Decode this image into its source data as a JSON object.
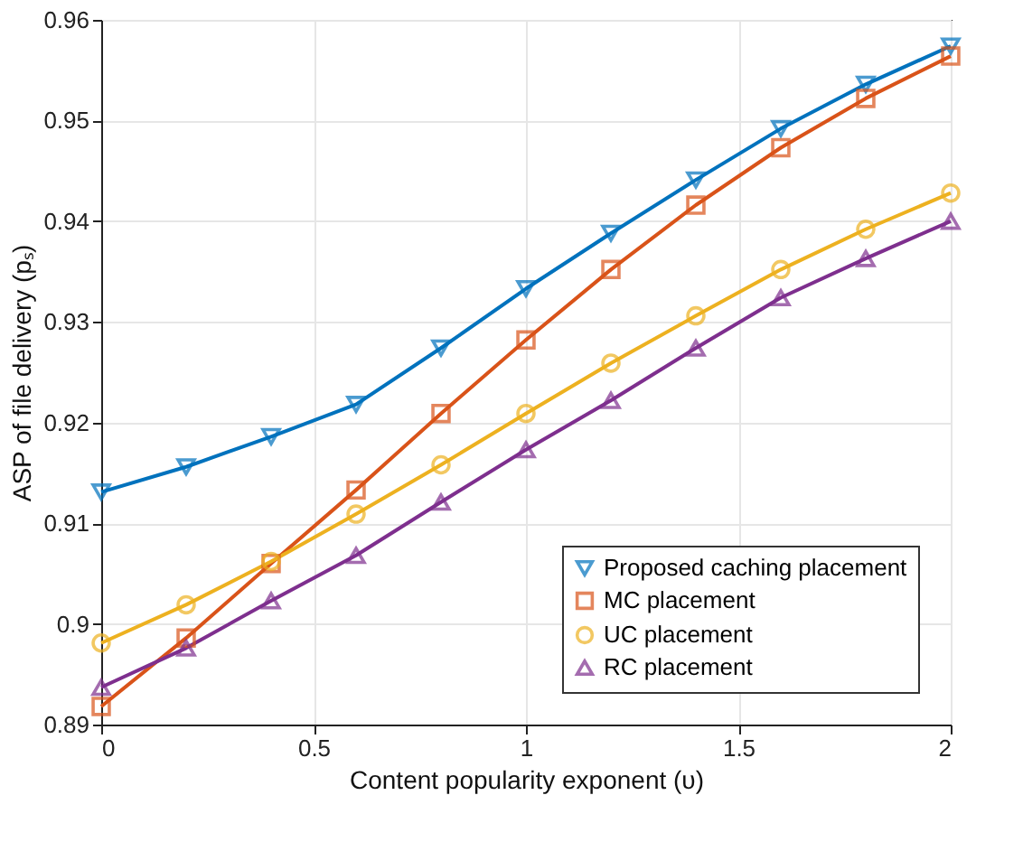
{
  "chart_data": {
    "type": "line",
    "xlabel": "Content popularity exponent (υ)",
    "ylabel": "ASP of file delivery (pₛ)",
    "x": [
      0,
      0.2,
      0.4,
      0.6,
      0.8,
      1,
      1.2,
      1.4,
      1.6,
      1.8,
      2
    ],
    "series": [
      {
        "name": "Proposed caching placement",
        "color": "#0072bd",
        "marker": "triangle-down",
        "values": [
          0.9131,
          0.9156,
          0.9186,
          0.9218,
          0.9274,
          0.9333,
          0.9388,
          0.9441,
          0.9492,
          0.9536,
          0.9574
        ]
      },
      {
        "name": "MC placement",
        "color": "#d95319",
        "marker": "square",
        "values": [
          0.8918,
          0.8986,
          0.906,
          0.9133,
          0.9209,
          0.9282,
          0.9352,
          0.9416,
          0.9473,
          0.9522,
          0.9564
        ]
      },
      {
        "name": "UC placement",
        "color": "#edb120",
        "marker": "circle",
        "values": [
          0.8981,
          0.9019,
          0.9062,
          0.9109,
          0.9158,
          0.9209,
          0.9259,
          0.9306,
          0.9352,
          0.9392,
          0.9428
        ]
      },
      {
        "name": "RC placement",
        "color": "#7e2f8e",
        "marker": "triangle",
        "values": [
          0.8937,
          0.8976,
          0.9023,
          0.9068,
          0.9121,
          0.9173,
          0.9222,
          0.9274,
          0.9324,
          0.9363,
          0.94
        ]
      }
    ],
    "xlim": [
      0,
      2
    ],
    "xticks": [
      0,
      0.5,
      1,
      1.5,
      2
    ],
    "ylim": [
      0.89,
      0.96
    ],
    "yticks": [
      0.89,
      0.9,
      0.91,
      0.92,
      0.93,
      0.94,
      0.95,
      0.96
    ],
    "grid": true,
    "legend": "bottom right",
    "line_style": "solid"
  }
}
